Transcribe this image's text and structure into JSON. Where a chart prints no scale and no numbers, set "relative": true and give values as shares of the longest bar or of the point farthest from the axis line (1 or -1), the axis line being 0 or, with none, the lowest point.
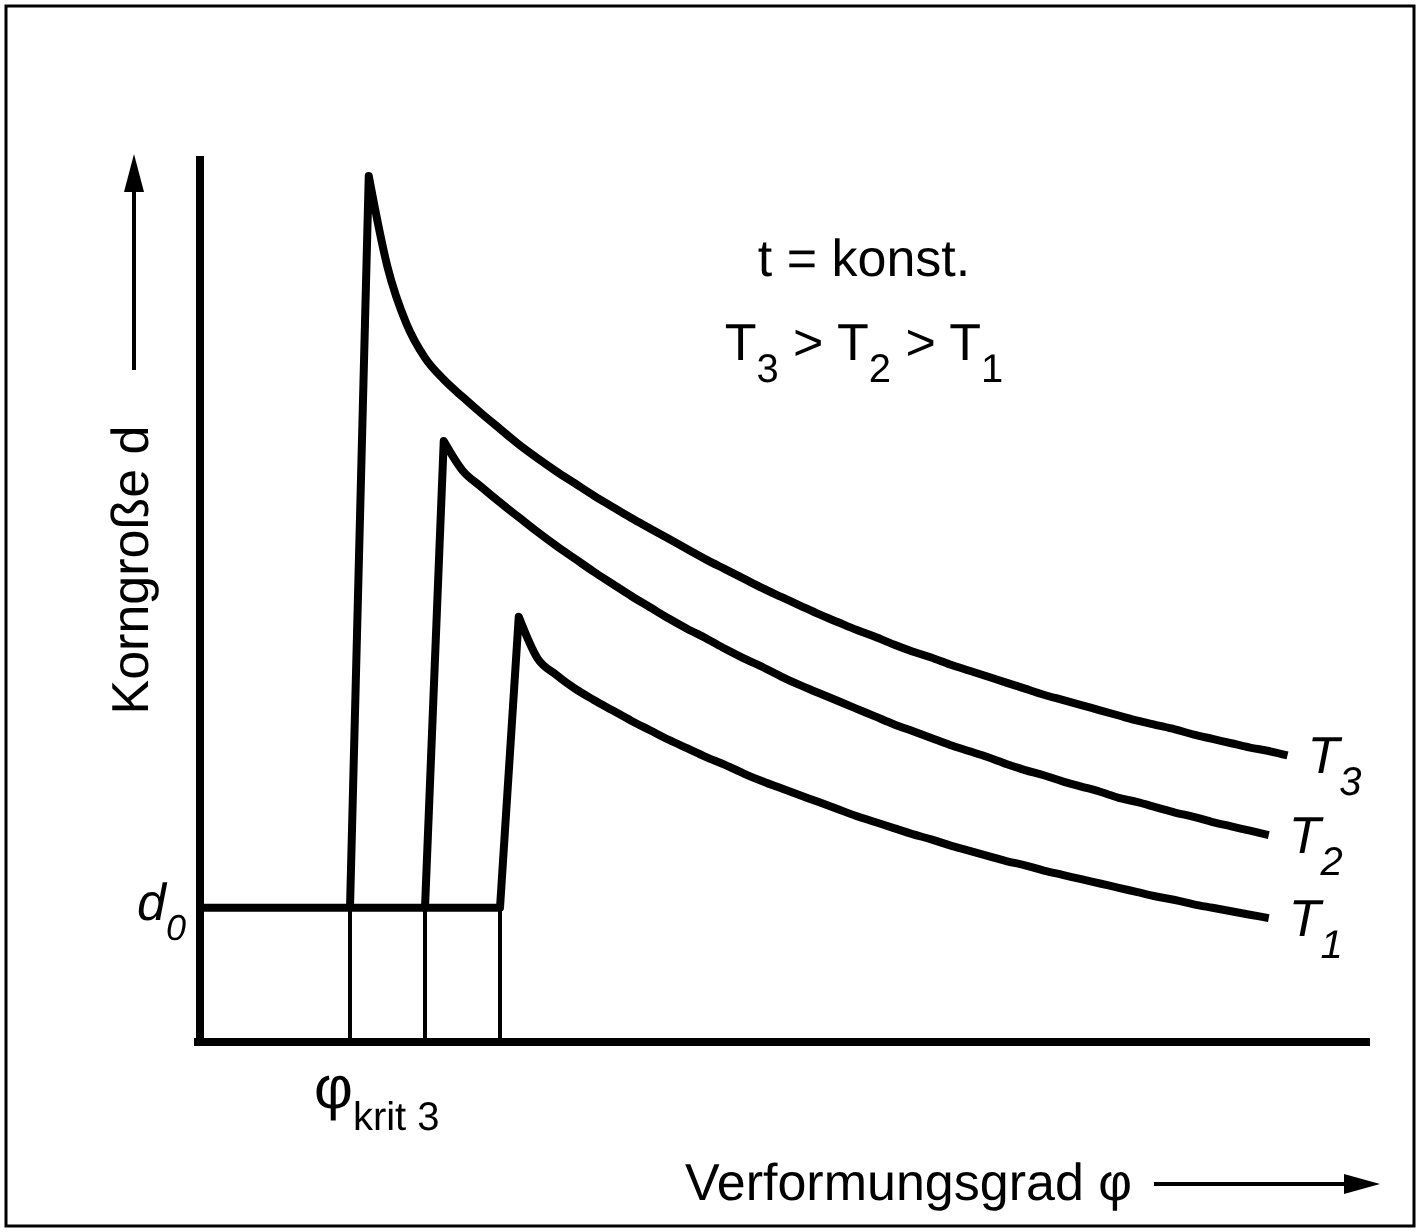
{
  "chart_data": {
    "type": "line",
    "xlabel": "Verformungsgrad φ",
    "ylabel": "Korngroße d",
    "relative": true,
    "categories": [
      null,
      null,
      null,
      null,
      null,
      null,
      null,
      null,
      null,
      null,
      null,
      null,
      null,
      null,
      null,
      null,
      null,
      null,
      null,
      null,
      null,
      null,
      null,
      null,
      null,
      null,
      null,
      null,
      null,
      null,
      null,
      null,
      null,
      null,
      null,
      null,
      null,
      null,
      null,
      null,
      null,
      null,
      null,
      null,
      null,
      null,
      null,
      null,
      null,
      null,
      null,
      null,
      null,
      null,
      null,
      null,
      null,
      null,
      null
    ],
    "annotations": [
      "t = konst.",
      "T$_{3}$ > T$_{2}$ > T$_{1}$",
      "d$_{0}$",
      "φ$_{krit 3}$"
    ],
    "series": [
      {
        "name": "T$_{1}$",
        "color": "#000000",
        "values": [
          0.155,
          0.155,
          0.155,
          0.155,
          0.155,
          0.155,
          0.155,
          0.155,
          0.155,
          0.155,
          0.155,
          0.155,
          0.155,
          0.155,
          0.155,
          0.155,
          0.155,
          0.491,
          0.443,
          0.424,
          0.408,
          0.395,
          0.383,
          0.371,
          0.36,
          0.349,
          0.339,
          0.329,
          0.32,
          0.31,
          0.301,
          0.293,
          0.285,
          0.277,
          0.269,
          0.261,
          0.254,
          0.247,
          0.24,
          0.234,
          0.227,
          0.221,
          0.215,
          0.209,
          0.204,
          0.198,
          0.193,
          0.188,
          0.183,
          0.178,
          0.173,
          0.168,
          0.164,
          0.159,
          0.155,
          0.151,
          0.147,
          0.143,
          null
        ]
      },
      {
        "name": "T$_{2}$",
        "color": "#000000",
        "values": [
          null,
          null,
          null,
          null,
          null,
          null,
          null,
          null,
          null,
          null,
          null,
          null,
          0.155,
          0.694,
          0.66,
          0.641,
          0.623,
          0.606,
          0.589,
          0.573,
          0.558,
          0.543,
          0.529,
          0.515,
          0.502,
          0.489,
          0.477,
          0.466,
          0.454,
          0.443,
          0.433,
          0.422,
          0.412,
          0.403,
          0.394,
          0.385,
          0.376,
          0.367,
          0.359,
          0.351,
          0.343,
          0.336,
          0.329,
          0.321,
          0.314,
          0.308,
          0.301,
          0.295,
          0.289,
          0.282,
          0.277,
          0.271,
          0.265,
          0.26,
          0.254,
          0.249,
          0.244,
          0.239,
          null
        ]
      },
      {
        "name": "T$_{3}$",
        "color": "#000000",
        "values": [
          null,
          null,
          null,
          null,
          null,
          null,
          null,
          null,
          0.155,
          1,
          0.895,
          0.83,
          0.79,
          0.765,
          0.745,
          0.726,
          0.708,
          0.69,
          0.674,
          0.659,
          0.645,
          0.631,
          0.618,
          0.605,
          0.593,
          0.581,
          0.569,
          0.557,
          0.546,
          0.535,
          0.524,
          0.514,
          0.504,
          0.494,
          0.485,
          0.476,
          0.468,
          0.459,
          0.451,
          0.444,
          0.436,
          0.429,
          0.422,
          0.415,
          0.408,
          0.401,
          0.395,
          0.389,
          0.383,
          0.377,
          0.371,
          0.366,
          0.361,
          0.355,
          0.35,
          0.345,
          0.34,
          0.336,
          0.331
        ]
      }
    ]
  }
}
